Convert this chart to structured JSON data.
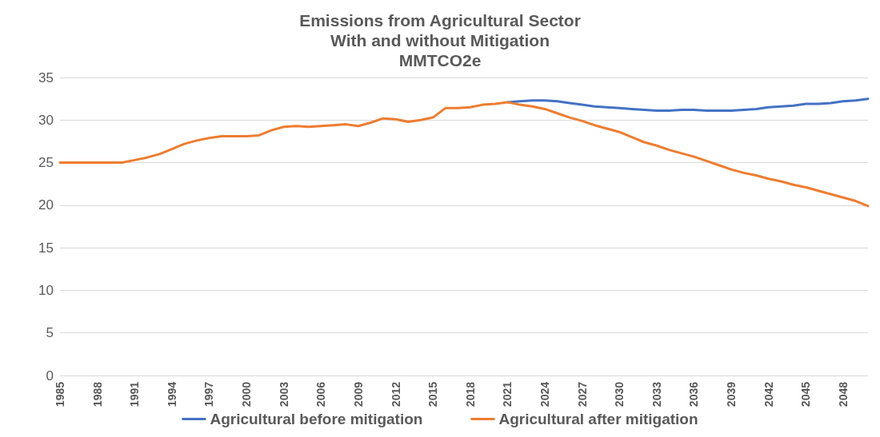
{
  "chart_data": {
    "type": "line",
    "title": "Emissions from Agricultural Sector\nWith and without Mitigation\nMMTCO2e",
    "categories": [
      "1985",
      null,
      null,
      "1988",
      null,
      null,
      "1991",
      null,
      null,
      "1994",
      null,
      null,
      "1997",
      null,
      null,
      "2000",
      null,
      null,
      "2003",
      null,
      null,
      "2006",
      null,
      null,
      "2009",
      null,
      null,
      "2012",
      null,
      null,
      "2015",
      null,
      null,
      "2018",
      null,
      null,
      "2021",
      null,
      null,
      "2024",
      null,
      null,
      "2027",
      null,
      null,
      "2030",
      null,
      null,
      "2033",
      null,
      null,
      "2036",
      null,
      null,
      "2039",
      null,
      null,
      "2042",
      null,
      null,
      "2045",
      null,
      null,
      "2048",
      null,
      null
    ],
    "series": [
      {
        "name": "Agricultural before mitigation",
        "color": "#4472c4",
        "values": [
          null,
          null,
          null,
          null,
          null,
          null,
          null,
          null,
          null,
          null,
          null,
          null,
          null,
          null,
          null,
          null,
          null,
          null,
          null,
          null,
          null,
          null,
          null,
          null,
          null,
          null,
          null,
          null,
          null,
          null,
          null,
          null,
          null,
          null,
          null,
          null,
          32.1,
          32.2,
          32.3,
          32.3,
          32.2,
          32.0,
          31.8,
          31.6,
          31.5,
          31.4,
          31.3,
          31.2,
          31.1,
          31.1,
          31.2,
          31.2,
          31.1,
          31.1,
          31.1,
          31.2,
          31.3,
          31.5,
          31.6,
          31.7,
          31.9,
          31.9,
          32.0,
          32.2,
          32.3,
          32.5
        ]
      },
      {
        "name": "Agricultural after mitigation",
        "color": "#ed7d31",
        "values": [
          25.0,
          25.0,
          25.0,
          25.0,
          25.0,
          25.0,
          25.3,
          25.6,
          26.0,
          26.6,
          27.2,
          27.6,
          27.9,
          28.1,
          28.1,
          28.1,
          28.2,
          28.8,
          29.2,
          29.3,
          29.2,
          29.3,
          29.4,
          29.5,
          29.3,
          29.7,
          30.2,
          30.1,
          29.8,
          30.0,
          30.3,
          31.4,
          31.4,
          31.5,
          31.8,
          31.9,
          32.1,
          31.8,
          31.6,
          31.3,
          30.8,
          30.3,
          29.9,
          29.4,
          29.0,
          28.6,
          28.0,
          27.4,
          27.0,
          26.5,
          26.1,
          25.7,
          25.2,
          24.7,
          24.2,
          23.8,
          23.5,
          23.1,
          22.8,
          22.4,
          22.1,
          21.7,
          21.3,
          20.9,
          20.5,
          19.9
        ]
      }
    ],
    "ylim": [
      0,
      35
    ],
    "yticks": [
      0,
      5,
      10,
      15,
      20,
      25,
      30,
      35
    ],
    "grid": "y",
    "legend": "bottom",
    "marker": "none",
    "line_style": "solid"
  }
}
